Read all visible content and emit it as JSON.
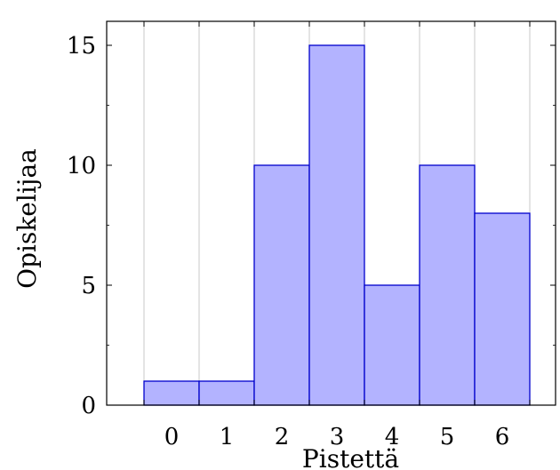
{
  "chart_data": {
    "type": "bar",
    "categories": [
      "0",
      "1",
      "2",
      "3",
      "4",
      "5",
      "6"
    ],
    "values": [
      1,
      1,
      10,
      15,
      5,
      10,
      8
    ],
    "title": "",
    "xlabel": "Pistettä",
    "ylabel": "Opiskelijaa",
    "ylim": [
      0,
      16
    ],
    "yticks": [
      0,
      5,
      10,
      15
    ],
    "grid": "vertical",
    "bar_color": "#b3b3ff",
    "bar_edge_color": "#0000cc"
  }
}
